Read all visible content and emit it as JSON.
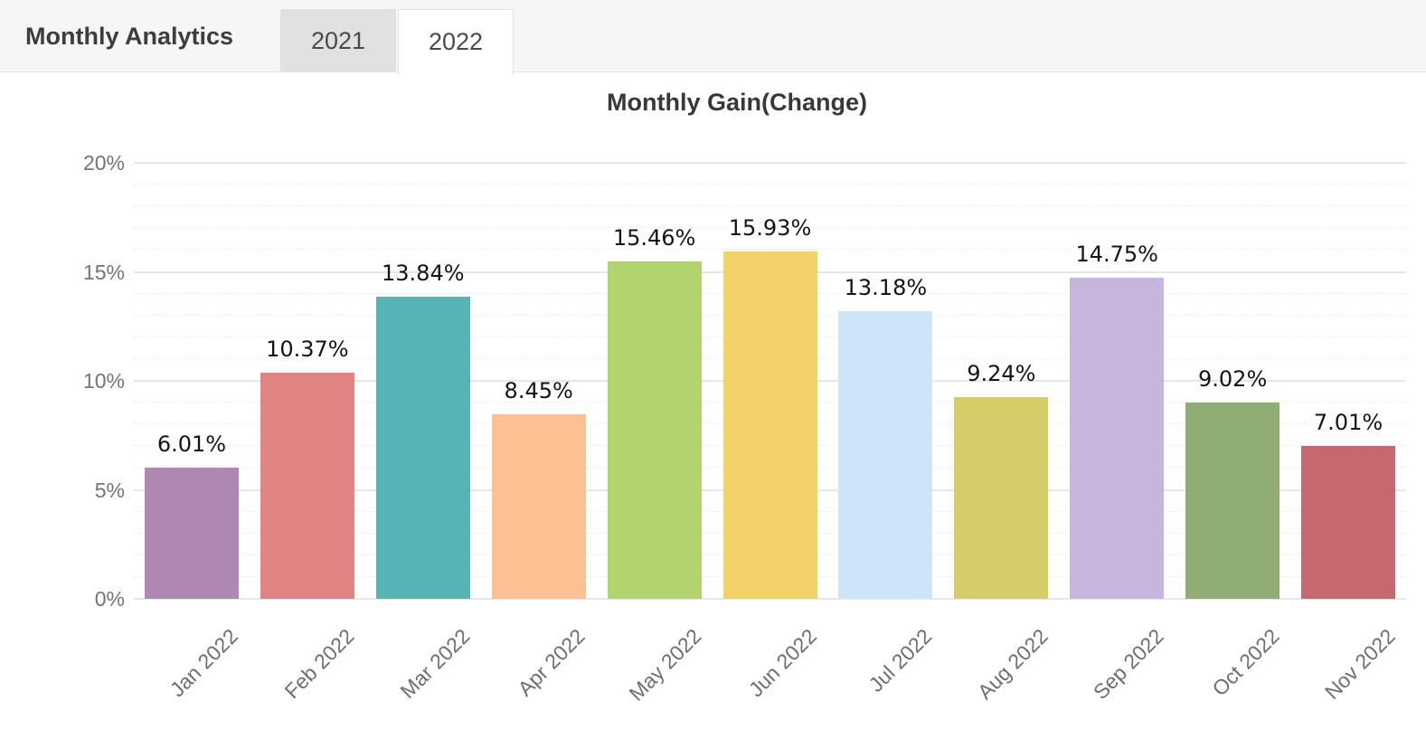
{
  "header": {
    "title": "Monthly Analytics",
    "tabs": [
      {
        "label": "2021",
        "active": false
      },
      {
        "label": "2022",
        "active": true
      }
    ]
  },
  "chart_data": {
    "type": "bar",
    "title": "Monthly Gain(Change)",
    "categories": [
      "Jan 2022",
      "Feb 2022",
      "Mar 2022",
      "Apr 2022",
      "May 2022",
      "Jun 2022",
      "Jul 2022",
      "Aug 2022",
      "Sep 2022",
      "Oct 2022",
      "Nov 2022"
    ],
    "values": [
      6.01,
      10.37,
      13.84,
      8.45,
      15.46,
      15.93,
      13.18,
      9.24,
      14.75,
      9.02,
      7.01
    ],
    "value_labels": [
      "6.01%",
      "10.37%",
      "13.84%",
      "8.45%",
      "15.46%",
      "15.93%",
      "13.18%",
      "9.24%",
      "14.75%",
      "9.02%",
      "7.01%"
    ],
    "bar_colors": [
      "#ae87b3",
      "#e28383",
      "#58b3b4",
      "#fbc192",
      "#b1d46e",
      "#f3d368",
      "#cde6f7",
      "#d5cd67",
      "#c7b5de",
      "#90ae73",
      "#c5686f"
    ],
    "xlabel": "",
    "ylabel": "",
    "ylim": [
      0,
      20
    ],
    "y_ticks": {
      "values": [
        0,
        5,
        10,
        15,
        20
      ],
      "labels": [
        "0%",
        "5%",
        "10%",
        "15%",
        "20%"
      ]
    },
    "grid": {
      "major_step": 5,
      "minor_step": 1,
      "on": true
    },
    "legend": "none"
  }
}
